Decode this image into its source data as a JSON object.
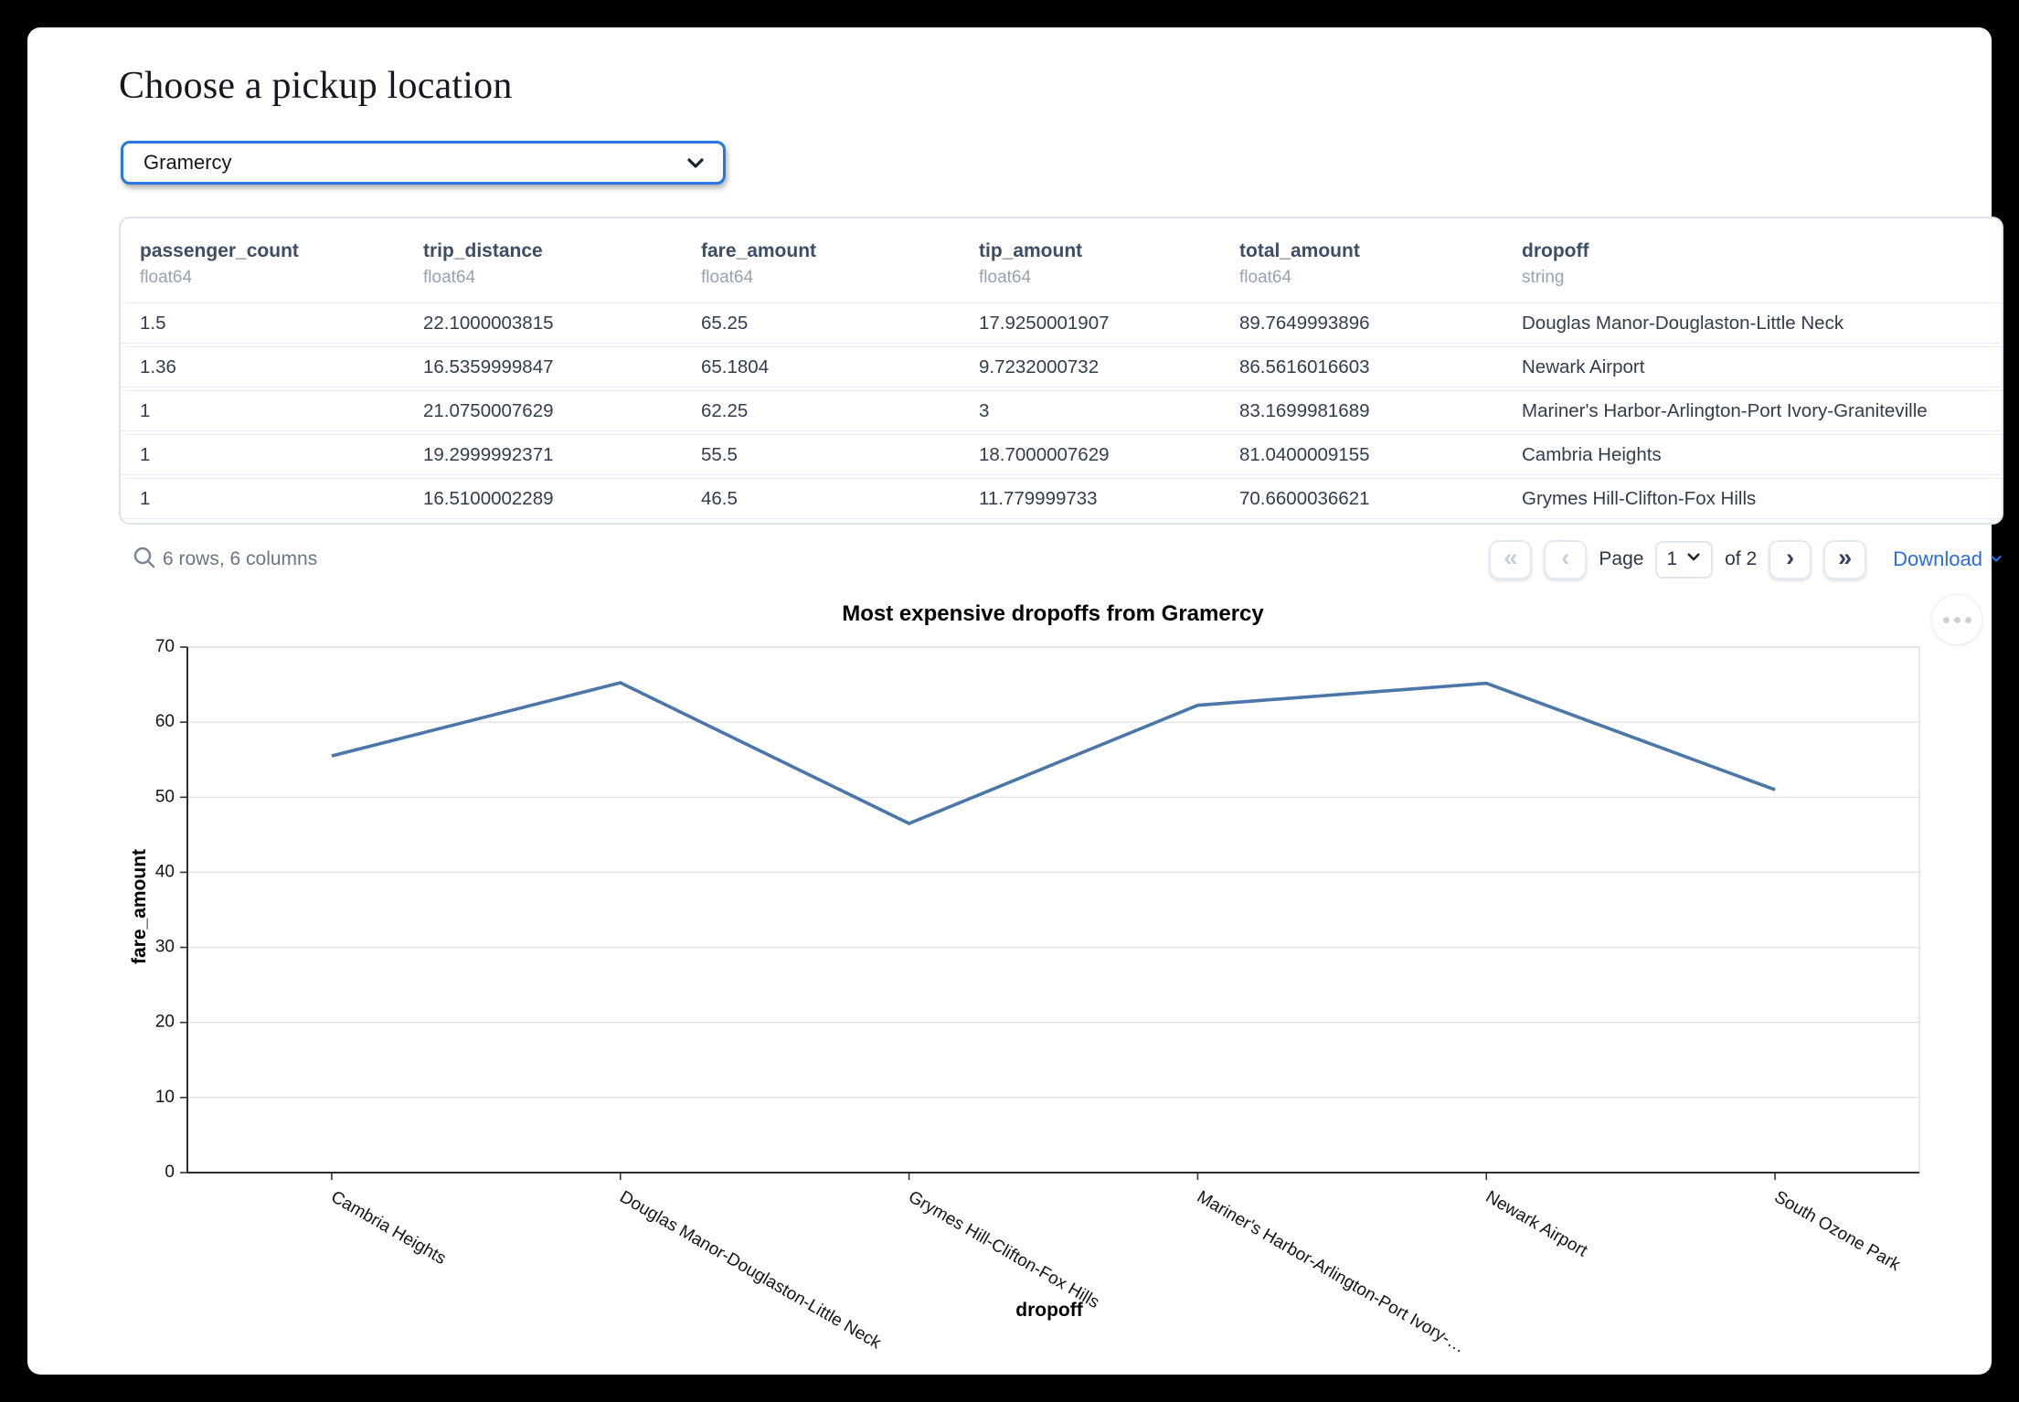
{
  "page_title": "Choose a pickup location",
  "pickup_select": {
    "value": "Gramercy"
  },
  "table": {
    "columns": [
      {
        "name": "passenger_count",
        "type": "float64"
      },
      {
        "name": "trip_distance",
        "type": "float64"
      },
      {
        "name": "fare_amount",
        "type": "float64"
      },
      {
        "name": "tip_amount",
        "type": "float64"
      },
      {
        "name": "total_amount",
        "type": "float64"
      },
      {
        "name": "dropoff",
        "type": "string"
      }
    ],
    "rows": [
      [
        "1.5",
        "22.1000003815",
        "65.25",
        "17.9250001907",
        "89.7649993896",
        "Douglas Manor-Douglaston-Little Neck"
      ],
      [
        "1.36",
        "16.5359999847",
        "65.1804",
        "9.7232000732",
        "86.5616016603",
        "Newark Airport"
      ],
      [
        "1",
        "21.0750007629",
        "62.25",
        "3",
        "83.1699981689",
        "Mariner's Harbor-Arlington-Port Ivory-Graniteville"
      ],
      [
        "1",
        "19.2999992371",
        "55.5",
        "18.7000007629",
        "81.0400009155",
        "Cambria Heights"
      ],
      [
        "1",
        "16.5100002289",
        "46.5",
        "11.779999733",
        "70.6600036621",
        "Grymes Hill-Clifton-Fox Hills"
      ]
    ],
    "summary": "6 rows, 6 columns",
    "pagination": {
      "first_icon": "«",
      "prev_icon": "‹",
      "page_label": "Page",
      "page_value": "1",
      "of_label": "of 2",
      "next_icon": "›",
      "last_icon": "»"
    },
    "download_label": "Download"
  },
  "chart_data": {
    "type": "line",
    "title": "Most expensive dropoffs from Gramercy",
    "xlabel": "dropoff",
    "ylabel": "fare_amount",
    "categories": [
      "Cambria Heights",
      "Douglas Manor-Douglaston-Little Neck",
      "Grymes Hill-Clifton-Fox Hills",
      "Mariner's Harbor-Arlington-Port Ivory-Graniteville",
      "Newark Airport",
      "South Ozone Park"
    ],
    "x_tick_labels": [
      "Cambria Heights",
      "Douglas Manor-Douglaston-Little Neck",
      "Grymes Hill-Clifton-Fox Hills",
      "Mariner's Harbor-Arlington-Port Ivory-…",
      "Newark Airport",
      "South Ozone Park"
    ],
    "values": [
      55.5,
      65.25,
      46.5,
      62.25,
      65.1804,
      51
    ],
    "ylim": [
      0,
      70
    ],
    "yticks": [
      0,
      10,
      20,
      30,
      40,
      50,
      60,
      70
    ],
    "line_color": "#4a76a8",
    "grid": true,
    "legend": "none"
  },
  "colors": {
    "accent_blue": "#2678df",
    "download_blue": "#2c6be0",
    "line": "#4a76a8",
    "grid": "#e3e3e3"
  }
}
